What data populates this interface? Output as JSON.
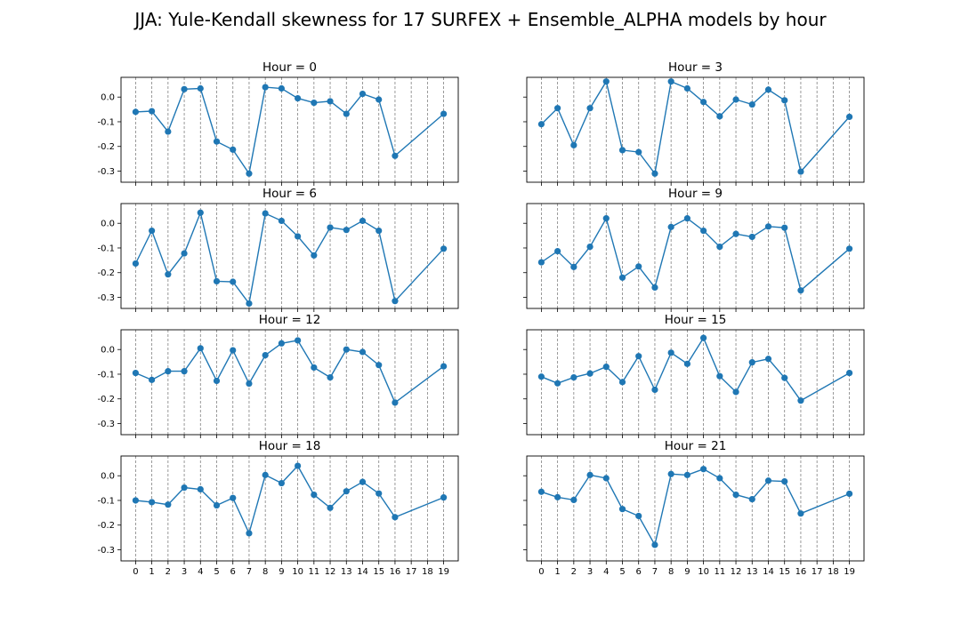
{
  "figure_title": "JJA: Yule-Kendall skewness for 17 SURFEX + Ensemble_ALPHA models by hour",
  "colors": {
    "series": "#1f77b4",
    "axes": "#000000",
    "grid": "#808080",
    "background": "#ffffff"
  },
  "chart_data": [
    {
      "type": "line",
      "title": "Hour = 0",
      "x": [
        0,
        1,
        2,
        3,
        4,
        5,
        6,
        7,
        8,
        9,
        10,
        11,
        12,
        13,
        14,
        15,
        16,
        19
      ],
      "y": [
        -0.06,
        -0.057,
        -0.14,
        0.032,
        0.035,
        -0.18,
        -0.213,
        -0.31,
        0.04,
        0.035,
        -0.005,
        -0.023,
        -0.017,
        -0.068,
        0.013,
        -0.01,
        -0.238,
        -0.068
      ],
      "x_ticks": [
        "0",
        "1",
        "2",
        "3",
        "4",
        "5",
        "6",
        "7",
        "8",
        "9",
        "10",
        "11",
        "12",
        "13",
        "14",
        "15",
        "16",
        "17",
        "18",
        "19"
      ],
      "y_ticks": [
        "0.0",
        "-0.1",
        "-0.2",
        "-0.3"
      ],
      "xlim": [
        -0.9,
        19.9
      ],
      "ylim": [
        -0.345,
        0.08
      ],
      "grid": "vertical dashed",
      "marker": "circle"
    },
    {
      "type": "line",
      "title": "Hour = 3",
      "x": [
        0,
        1,
        2,
        3,
        4,
        5,
        6,
        7,
        8,
        9,
        10,
        11,
        12,
        13,
        14,
        15,
        16,
        19
      ],
      "y": [
        -0.11,
        -0.045,
        -0.195,
        -0.045,
        0.063,
        -0.215,
        -0.223,
        -0.31,
        0.063,
        0.035,
        -0.02,
        -0.078,
        -0.01,
        -0.03,
        0.03,
        -0.013,
        -0.302,
        -0.08
      ],
      "x_ticks": [
        "0",
        "1",
        "2",
        "3",
        "4",
        "5",
        "6",
        "7",
        "8",
        "9",
        "10",
        "11",
        "12",
        "13",
        "14",
        "15",
        "16",
        "17",
        "18",
        "19"
      ],
      "y_ticks": [
        "0.0",
        "-0.1",
        "-0.2",
        "-0.3"
      ],
      "xlim": [
        -0.9,
        19.9
      ],
      "ylim": [
        -0.345,
        0.08
      ],
      "grid": "vertical dashed",
      "marker": "circle"
    },
    {
      "type": "line",
      "title": "Hour = 6",
      "x": [
        0,
        1,
        2,
        3,
        4,
        5,
        6,
        7,
        8,
        9,
        10,
        11,
        12,
        13,
        14,
        15,
        16,
        19
      ],
      "y": [
        -0.163,
        -0.03,
        -0.207,
        -0.122,
        0.043,
        -0.235,
        -0.237,
        -0.325,
        0.04,
        0.01,
        -0.053,
        -0.13,
        -0.017,
        -0.027,
        0.01,
        -0.03,
        -0.315,
        -0.103
      ],
      "x_ticks": [
        "0",
        "1",
        "2",
        "3",
        "4",
        "5",
        "6",
        "7",
        "8",
        "9",
        "10",
        "11",
        "12",
        "13",
        "14",
        "15",
        "16",
        "17",
        "18",
        "19"
      ],
      "y_ticks": [
        "0.0",
        "-0.1",
        "-0.2",
        "-0.3"
      ],
      "xlim": [
        -0.9,
        19.9
      ],
      "ylim": [
        -0.345,
        0.08
      ],
      "grid": "vertical dashed",
      "marker": "circle"
    },
    {
      "type": "line",
      "title": "Hour = 9",
      "x": [
        0,
        1,
        2,
        3,
        4,
        5,
        6,
        7,
        8,
        9,
        10,
        11,
        12,
        13,
        14,
        15,
        16,
        19
      ],
      "y": [
        -0.158,
        -0.113,
        -0.177,
        -0.095,
        0.02,
        -0.22,
        -0.175,
        -0.26,
        -0.015,
        0.02,
        -0.03,
        -0.095,
        -0.043,
        -0.055,
        -0.013,
        -0.018,
        -0.272,
        -0.103
      ],
      "x_ticks": [
        "0",
        "1",
        "2",
        "3",
        "4",
        "5",
        "6",
        "7",
        "8",
        "9",
        "10",
        "11",
        "12",
        "13",
        "14",
        "15",
        "16",
        "17",
        "18",
        "19"
      ],
      "y_ticks": [
        "0.0",
        "-0.1",
        "-0.2",
        "-0.3"
      ],
      "xlim": [
        -0.9,
        19.9
      ],
      "ylim": [
        -0.345,
        0.08
      ],
      "grid": "vertical dashed",
      "marker": "circle"
    },
    {
      "type": "line",
      "title": "Hour = 12",
      "x": [
        0,
        1,
        2,
        3,
        4,
        5,
        6,
        7,
        8,
        9,
        10,
        11,
        12,
        13,
        14,
        15,
        16,
        19
      ],
      "y": [
        -0.095,
        -0.123,
        -0.088,
        -0.088,
        0.005,
        -0.127,
        -0.003,
        -0.138,
        -0.023,
        0.025,
        0.037,
        -0.073,
        -0.113,
        0.0,
        -0.01,
        -0.063,
        -0.215,
        -0.068
      ],
      "x_ticks": [
        "0",
        "1",
        "2",
        "3",
        "4",
        "5",
        "6",
        "7",
        "8",
        "9",
        "10",
        "11",
        "12",
        "13",
        "14",
        "15",
        "16",
        "17",
        "18",
        "19"
      ],
      "y_ticks": [
        "0.0",
        "-0.1",
        "-0.2",
        "-0.3"
      ],
      "xlim": [
        -0.9,
        19.9
      ],
      "ylim": [
        -0.345,
        0.08
      ],
      "grid": "vertical dashed",
      "marker": "circle"
    },
    {
      "type": "line",
      "title": "Hour = 15",
      "x": [
        0,
        1,
        2,
        3,
        4,
        5,
        6,
        7,
        8,
        9,
        10,
        11,
        12,
        13,
        14,
        15,
        16,
        19
      ],
      "y": [
        -0.11,
        -0.137,
        -0.113,
        -0.097,
        -0.07,
        -0.132,
        -0.027,
        -0.163,
        -0.013,
        -0.058,
        0.047,
        -0.108,
        -0.172,
        -0.052,
        -0.038,
        -0.115,
        -0.207,
        -0.095
      ],
      "x_ticks": [
        "0",
        "1",
        "2",
        "3",
        "4",
        "5",
        "6",
        "7",
        "8",
        "9",
        "10",
        "11",
        "12",
        "13",
        "14",
        "15",
        "16",
        "17",
        "18",
        "19"
      ],
      "y_ticks": [
        "0.0",
        "-0.1",
        "-0.2",
        "-0.3"
      ],
      "xlim": [
        -0.9,
        19.9
      ],
      "ylim": [
        -0.345,
        0.08
      ],
      "grid": "vertical dashed",
      "marker": "circle"
    },
    {
      "type": "line",
      "title": "Hour = 18",
      "x": [
        0,
        1,
        2,
        3,
        4,
        5,
        6,
        7,
        8,
        9,
        10,
        11,
        12,
        13,
        14,
        15,
        16,
        19
      ],
      "y": [
        -0.1,
        -0.107,
        -0.117,
        -0.048,
        -0.055,
        -0.12,
        -0.09,
        -0.233,
        0.003,
        -0.03,
        0.04,
        -0.077,
        -0.13,
        -0.063,
        -0.025,
        -0.072,
        -0.168,
        -0.088
      ],
      "x_ticks": [
        "0",
        "1",
        "2",
        "3",
        "4",
        "5",
        "6",
        "7",
        "8",
        "9",
        "10",
        "11",
        "12",
        "13",
        "14",
        "15",
        "16",
        "17",
        "18",
        "19"
      ],
      "y_ticks": [
        "0.0",
        "-0.1",
        "-0.2",
        "-0.3"
      ],
      "xlim": [
        -0.9,
        19.9
      ],
      "ylim": [
        -0.345,
        0.08
      ],
      "grid": "vertical dashed",
      "marker": "circle"
    },
    {
      "type": "line",
      "title": "Hour = 21",
      "x": [
        0,
        1,
        2,
        3,
        4,
        5,
        6,
        7,
        8,
        9,
        10,
        11,
        12,
        13,
        14,
        15,
        16,
        19
      ],
      "y": [
        -0.065,
        -0.087,
        -0.098,
        0.003,
        -0.01,
        -0.135,
        -0.163,
        -0.28,
        0.007,
        0.003,
        0.027,
        -0.01,
        -0.077,
        -0.095,
        -0.02,
        -0.023,
        -0.153,
        -0.073
      ],
      "x_ticks": [
        "0",
        "1",
        "2",
        "3",
        "4",
        "5",
        "6",
        "7",
        "8",
        "9",
        "10",
        "11",
        "12",
        "13",
        "14",
        "15",
        "16",
        "17",
        "18",
        "19"
      ],
      "y_ticks": [
        "0.0",
        "-0.1",
        "-0.2",
        "-0.3"
      ],
      "xlim": [
        -0.9,
        19.9
      ],
      "ylim": [
        -0.345,
        0.08
      ],
      "grid": "vertical dashed",
      "marker": "circle"
    }
  ]
}
